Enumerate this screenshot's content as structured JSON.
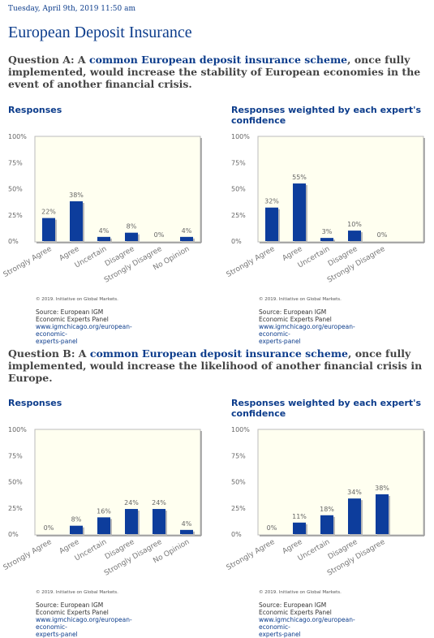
{
  "date": "Tuesday, April 9th, 2019 11:50 am",
  "title": "European Deposit Insurance",
  "questions": [
    {
      "prefix": "Question A: A ",
      "highlight": "common European deposit insurance scheme",
      "suffix": ", once fully implemented, would increase the stability of European economies in the event of another financial crisis."
    },
    {
      "prefix": "Question B: A ",
      "highlight": "common European deposit insurance scheme",
      "suffix": ", once fully implemented, would increase the likelihood of another financial crisis in Europe."
    }
  ],
  "footer": {
    "copyright": "© 2019. Initiative on Global Markets.",
    "source": "Source: European IGM Economic Experts Panel",
    "url_line1": "www.igmchicago.org/european-economic-",
    "url_line2": "experts-panel"
  },
  "colors": {
    "bar": "#0d3d9c",
    "plot_bg": "#fffff0",
    "heading": "#0d3d8c"
  },
  "chart_data": [
    {
      "id": "a-responses",
      "type": "bar",
      "title": "Responses",
      "categories": [
        "Strongly Agree",
        "Agree",
        "Uncertain",
        "Disagree",
        "Strongly Disagree",
        "No Opinion"
      ],
      "values": [
        22,
        38,
        4,
        8,
        0,
        4
      ],
      "labels": [
        "22%",
        "38%",
        "4%",
        "8%",
        "0%",
        "4%"
      ],
      "yticks": [
        "100%",
        "75%",
        "50%",
        "25%",
        "0%"
      ],
      "ylim": [
        0,
        100
      ]
    },
    {
      "id": "a-weighted",
      "type": "bar",
      "title": "Responses weighted by each expert's confidence",
      "categories": [
        "Strongly Agree",
        "Agree",
        "Uncertain",
        "Disagree",
        "Strongly Disagree"
      ],
      "values": [
        32,
        55,
        3,
        10,
        0
      ],
      "labels": [
        "32%",
        "55%",
        "3%",
        "10%",
        "0%"
      ],
      "yticks": [
        "100%",
        "75%",
        "50%",
        "25%",
        "0%"
      ],
      "ylim": [
        0,
        100
      ]
    },
    {
      "id": "b-responses",
      "type": "bar",
      "title": "Responses",
      "categories": [
        "Strongly Agree",
        "Agree",
        "Uncertain",
        "Disagree",
        "Strongly Disagree",
        "No Opinion"
      ],
      "values": [
        0,
        8,
        16,
        24,
        24,
        4
      ],
      "labels": [
        "0%",
        "8%",
        "16%",
        "24%",
        "24%",
        "4%"
      ],
      "yticks": [
        "100%",
        "75%",
        "50%",
        "25%",
        "0%"
      ],
      "ylim": [
        0,
        100
      ]
    },
    {
      "id": "b-weighted",
      "type": "bar",
      "title": "Responses weighted by each expert's confidence",
      "categories": [
        "Strongly Agree",
        "Agree",
        "Uncertain",
        "Disagree",
        "Strongly Disagree"
      ],
      "values": [
        0,
        11,
        18,
        34,
        38
      ],
      "labels": [
        "0%",
        "11%",
        "18%",
        "34%",
        "38%"
      ],
      "yticks": [
        "100%",
        "75%",
        "50%",
        "25%",
        "0%"
      ],
      "ylim": [
        0,
        100
      ]
    }
  ]
}
